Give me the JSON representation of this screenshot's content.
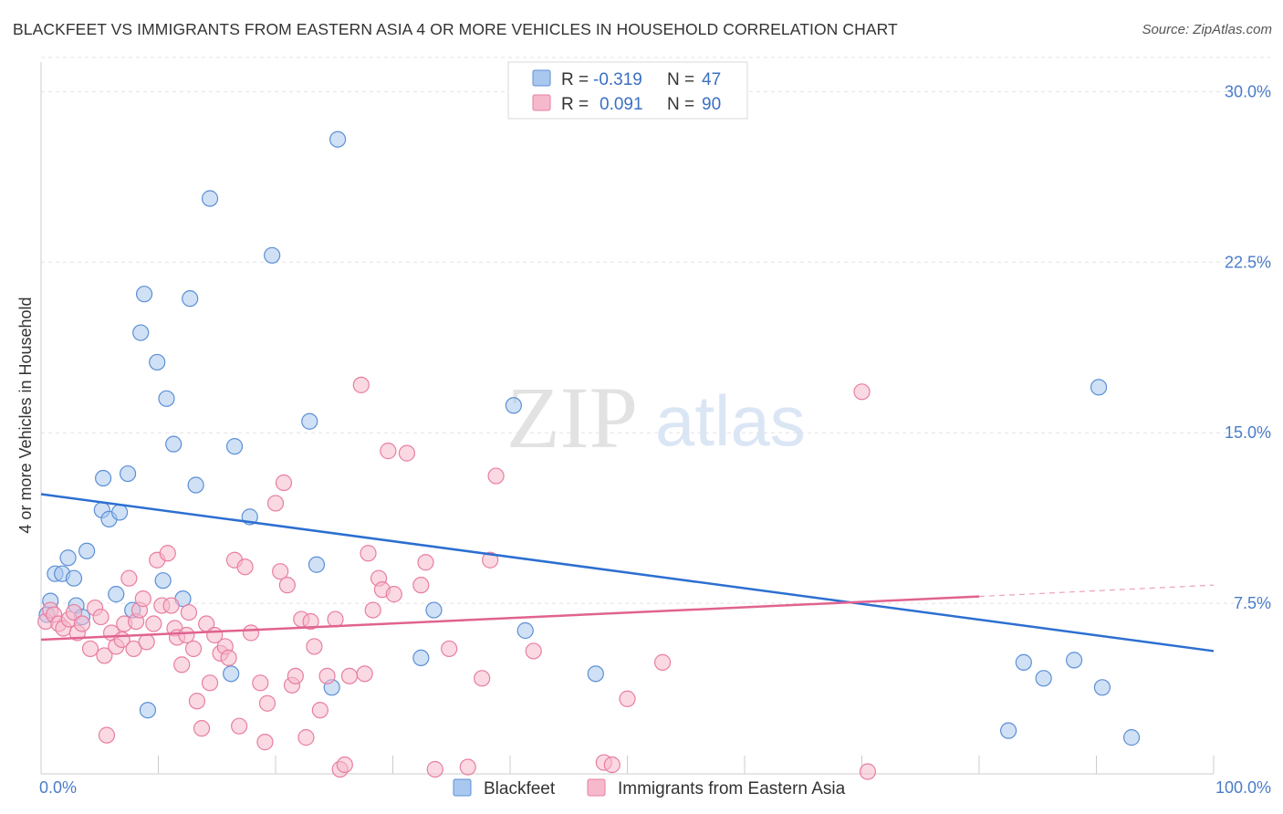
{
  "title": "BLACKFEET VS IMMIGRANTS FROM EASTERN ASIA 4 OR MORE VEHICLES IN HOUSEHOLD CORRELATION CHART",
  "source": "Source: ZipAtlas.com",
  "watermark": {
    "zip": "ZIP",
    "atlas": "atlas"
  },
  "legend": {
    "rows": [
      {
        "r_label": "R =",
        "r_value": "-0.319",
        "n_label": "N =",
        "n_value": "47"
      },
      {
        "r_label": "R =",
        "r_value": "0.091",
        "n_label": "N =",
        "n_value": "90"
      }
    ]
  },
  "colors": {
    "blackfeet_fill": "#a9c8ef",
    "blackfeet_stroke": "#5b8fd6",
    "blackfeet_line": "#2c6fd1",
    "eastasia_fill": "#f6b9cc",
    "eastasia_stroke": "#e87ea0",
    "eastasia_line": "#e0638f",
    "grid": "#e3e3e3",
    "tick_text": "#4a7cc9"
  },
  "chart_data": {
    "type": "scatter",
    "title": "BLACKFEET VS IMMIGRANTS FROM EASTERN ASIA 4 OR MORE VEHICLES IN HOUSEHOLD CORRELATION CHART",
    "xlabel": "",
    "ylabel": "4 or more Vehicles in Household",
    "xlim": [
      0,
      100
    ],
    "ylim": [
      0,
      31.5
    ],
    "x_tick_labels": [
      "0.0%",
      "100.0%"
    ],
    "y_ticks": [
      7.5,
      15.0,
      22.5,
      30.0
    ],
    "y_tick_labels": [
      "7.5%",
      "15.0%",
      "22.5%",
      "30.0%"
    ],
    "grid": true,
    "legend_position": "top-center",
    "series": [
      {
        "name": "Blackfeet",
        "points": [
          [
            0.8,
            7.6
          ],
          [
            1.2,
            8.8
          ],
          [
            1.8,
            8.8
          ],
          [
            2.3,
            9.5
          ],
          [
            2.8,
            8.6
          ],
          [
            3.0,
            7.4
          ],
          [
            3.5,
            6.9
          ],
          [
            3.9,
            9.8
          ],
          [
            5.2,
            11.6
          ],
          [
            5.3,
            13.0
          ],
          [
            5.8,
            11.2
          ],
          [
            6.4,
            7.9
          ],
          [
            6.7,
            11.5
          ],
          [
            7.4,
            13.2
          ],
          [
            7.8,
            7.2
          ],
          [
            8.5,
            19.4
          ],
          [
            8.8,
            21.1
          ],
          [
            9.1,
            2.8
          ],
          [
            9.9,
            18.1
          ],
          [
            10.4,
            8.5
          ],
          [
            10.7,
            16.5
          ],
          [
            11.3,
            14.5
          ],
          [
            12.1,
            7.7
          ],
          [
            12.7,
            20.9
          ],
          [
            13.2,
            12.7
          ],
          [
            14.4,
            25.3
          ],
          [
            16.2,
            4.4
          ],
          [
            16.5,
            14.4
          ],
          [
            17.8,
            11.3
          ],
          [
            19.7,
            22.8
          ],
          [
            22.9,
            15.5
          ],
          [
            23.5,
            9.2
          ],
          [
            24.8,
            3.8
          ],
          [
            25.3,
            27.9
          ],
          [
            32.4,
            5.1
          ],
          [
            33.5,
            7.2
          ],
          [
            40.3,
            16.2
          ],
          [
            41.3,
            6.3
          ],
          [
            47.3,
            4.4
          ],
          [
            82.5,
            1.9
          ],
          [
            83.8,
            4.9
          ],
          [
            85.5,
            4.2
          ],
          [
            88.1,
            5.0
          ],
          [
            90.2,
            17.0
          ],
          [
            90.5,
            3.8
          ],
          [
            93.0,
            1.6
          ],
          [
            0.5,
            7.0
          ]
        ],
        "trend": {
          "x": [
            0,
            100
          ],
          "y": [
            12.3,
            5.4
          ]
        }
      },
      {
        "name": "Immigrants from Eastern Asia",
        "points": [
          [
            0.4,
            6.7
          ],
          [
            0.8,
            7.2
          ],
          [
            1.1,
            7.0
          ],
          [
            1.5,
            6.6
          ],
          [
            1.9,
            6.4
          ],
          [
            2.4,
            6.8
          ],
          [
            2.8,
            7.1
          ],
          [
            3.1,
            6.2
          ],
          [
            3.5,
            6.6
          ],
          [
            4.2,
            5.5
          ],
          [
            4.6,
            7.3
          ],
          [
            5.1,
            6.9
          ],
          [
            5.4,
            5.2
          ],
          [
            5.6,
            1.7
          ],
          [
            6.0,
            6.2
          ],
          [
            6.4,
            5.6
          ],
          [
            6.9,
            5.9
          ],
          [
            7.1,
            6.6
          ],
          [
            7.5,
            8.6
          ],
          [
            7.9,
            5.5
          ],
          [
            8.1,
            6.7
          ],
          [
            8.4,
            7.2
          ],
          [
            8.7,
            7.7
          ],
          [
            9.0,
            5.8
          ],
          [
            9.6,
            6.6
          ],
          [
            9.9,
            9.4
          ],
          [
            10.3,
            7.4
          ],
          [
            10.8,
            9.7
          ],
          [
            11.1,
            7.4
          ],
          [
            11.4,
            6.4
          ],
          [
            11.6,
            6.0
          ],
          [
            12.0,
            4.8
          ],
          [
            12.4,
            6.1
          ],
          [
            12.6,
            7.1
          ],
          [
            13.0,
            5.5
          ],
          [
            13.3,
            3.2
          ],
          [
            13.7,
            2.0
          ],
          [
            14.1,
            6.6
          ],
          [
            14.4,
            4.0
          ],
          [
            14.8,
            6.1
          ],
          [
            15.3,
            5.3
          ],
          [
            15.7,
            5.6
          ],
          [
            16.0,
            5.1
          ],
          [
            16.5,
            9.4
          ],
          [
            16.9,
            2.1
          ],
          [
            17.4,
            9.1
          ],
          [
            17.9,
            6.2
          ],
          [
            18.7,
            4.0
          ],
          [
            19.1,
            1.4
          ],
          [
            19.3,
            3.1
          ],
          [
            20.0,
            11.9
          ],
          [
            20.4,
            8.9
          ],
          [
            20.7,
            12.8
          ],
          [
            21.0,
            8.3
          ],
          [
            21.4,
            3.9
          ],
          [
            21.7,
            4.3
          ],
          [
            22.2,
            6.8
          ],
          [
            22.6,
            1.6
          ],
          [
            23.0,
            6.7
          ],
          [
            23.3,
            5.6
          ],
          [
            23.8,
            2.8
          ],
          [
            24.4,
            4.3
          ],
          [
            25.1,
            6.8
          ],
          [
            25.5,
            0.2
          ],
          [
            25.9,
            0.4
          ],
          [
            26.3,
            4.3
          ],
          [
            27.3,
            17.1
          ],
          [
            27.6,
            4.4
          ],
          [
            27.9,
            9.7
          ],
          [
            28.3,
            7.2
          ],
          [
            28.8,
            8.6
          ],
          [
            29.1,
            8.1
          ],
          [
            29.6,
            14.2
          ],
          [
            30.1,
            7.9
          ],
          [
            31.2,
            14.1
          ],
          [
            32.4,
            8.3
          ],
          [
            32.8,
            9.3
          ],
          [
            33.6,
            0.2
          ],
          [
            34.8,
            5.5
          ],
          [
            36.4,
            0.3
          ],
          [
            37.6,
            4.2
          ],
          [
            38.3,
            9.4
          ],
          [
            38.8,
            13.1
          ],
          [
            42.0,
            5.4
          ],
          [
            48.0,
            0.5
          ],
          [
            48.7,
            0.4
          ],
          [
            50.0,
            3.3
          ],
          [
            53.0,
            4.9
          ],
          [
            70.0,
            16.8
          ],
          [
            70.5,
            0.1
          ]
        ],
        "trend": {
          "x": [
            0,
            80,
            100
          ],
          "y": [
            5.9,
            7.8,
            8.3
          ],
          "solid_until": 80
        }
      }
    ]
  }
}
